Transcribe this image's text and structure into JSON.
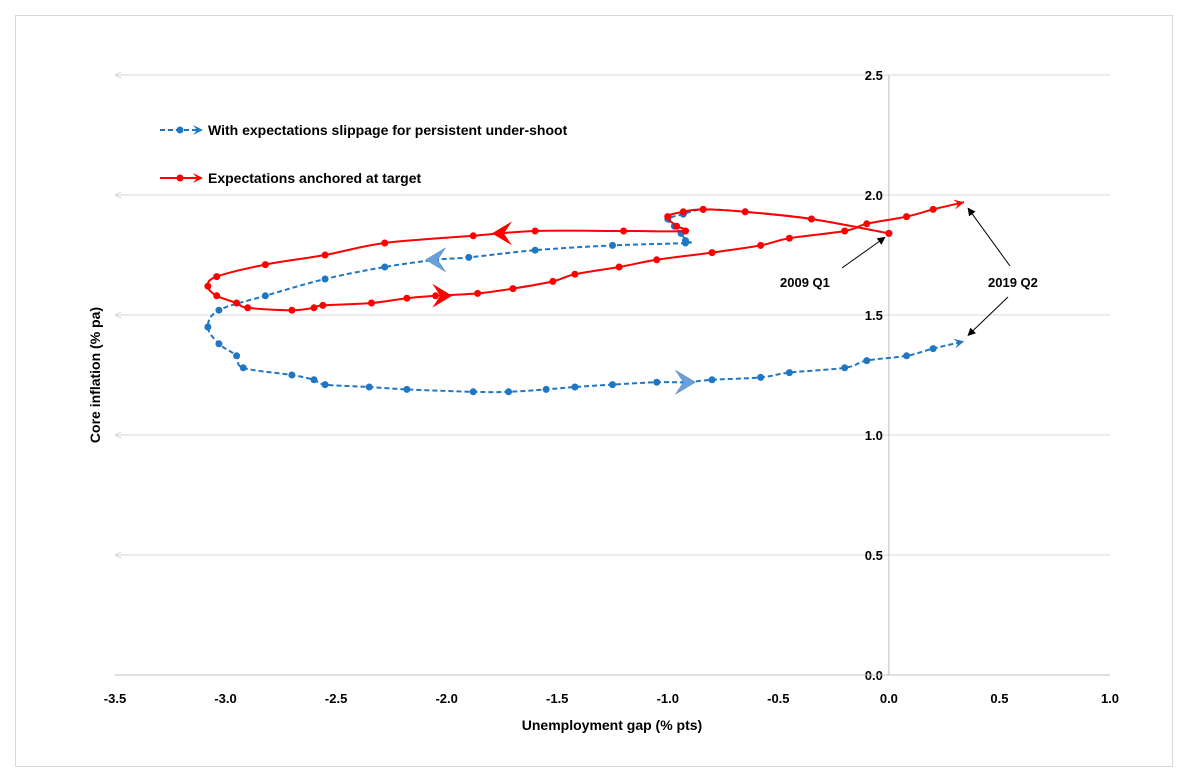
{
  "chart_data": {
    "type": "scatter",
    "title": "",
    "xlabel": "Unemployment gap (% pts)",
    "ylabel": "Core inflation (% pa)",
    "xlim": [
      -3.5,
      1.0
    ],
    "ylim": [
      0.0,
      2.5
    ],
    "xticks": [
      "-3.5",
      "-3.0",
      "-2.5",
      "-2.0",
      "-1.5",
      "-1.0",
      "-0.5",
      "0.0",
      "0.5",
      "1.0"
    ],
    "yticks": [
      "0.0",
      "0.5",
      "1.0",
      "1.5",
      "2.0",
      "2.5"
    ],
    "grid": "horizontal",
    "legend_position": "top-left",
    "colors": {
      "slippage": "#1f77c4",
      "anchored": "#ff0000",
      "blue_arrow": "#6a9fd8",
      "grid": "#d9d9d9",
      "axis": "#bfbfbf"
    },
    "series": [
      {
        "name": "With expectations slippage for persistent under-shoot",
        "style": "dashed",
        "points": [
          [
            0.0,
            1.84
          ],
          [
            -0.35,
            1.9
          ],
          [
            -0.65,
            1.93
          ],
          [
            -0.84,
            1.94
          ],
          [
            -0.93,
            1.92
          ],
          [
            -1.0,
            1.9
          ],
          [
            -0.97,
            1.87
          ],
          [
            -0.94,
            1.84
          ],
          [
            -0.92,
            1.81
          ],
          [
            -0.92,
            1.8
          ],
          [
            -1.25,
            1.79
          ],
          [
            -1.6,
            1.77
          ],
          [
            -1.9,
            1.74
          ],
          [
            -2.05,
            1.73
          ],
          [
            -2.28,
            1.7
          ],
          [
            -2.55,
            1.65
          ],
          [
            -2.82,
            1.58
          ],
          [
            -3.03,
            1.52
          ],
          [
            -3.08,
            1.45
          ],
          [
            -3.03,
            1.38
          ],
          [
            -2.95,
            1.33
          ],
          [
            -2.92,
            1.28
          ],
          [
            -2.7,
            1.25
          ],
          [
            -2.6,
            1.23
          ],
          [
            -2.55,
            1.21
          ],
          [
            -2.35,
            1.2
          ],
          [
            -2.18,
            1.19
          ],
          [
            -1.88,
            1.18
          ],
          [
            -1.72,
            1.18
          ],
          [
            -1.55,
            1.19
          ],
          [
            -1.42,
            1.2
          ],
          [
            -1.25,
            1.21
          ],
          [
            -1.05,
            1.22
          ],
          [
            -0.92,
            1.22
          ],
          [
            -0.8,
            1.23
          ],
          [
            -0.58,
            1.24
          ],
          [
            -0.45,
            1.26
          ],
          [
            -0.2,
            1.28
          ],
          [
            -0.1,
            1.31
          ],
          [
            0.08,
            1.33
          ],
          [
            0.2,
            1.36
          ],
          [
            0.34,
            1.39
          ]
        ],
        "direction_arrows": [
          [
            -2.05,
            1.73,
            "left"
          ],
          [
            -0.92,
            1.22,
            "right"
          ]
        ]
      },
      {
        "name": "Expectations anchored at target",
        "style": "solid",
        "points": [
          [
            0.0,
            1.84
          ],
          [
            -0.35,
            1.9
          ],
          [
            -0.65,
            1.93
          ],
          [
            -0.84,
            1.94
          ],
          [
            -0.93,
            1.93
          ],
          [
            -1.0,
            1.91
          ],
          [
            -0.96,
            1.87
          ],
          [
            -0.92,
            1.85
          ],
          [
            -1.2,
            1.85
          ],
          [
            -1.6,
            1.85
          ],
          [
            -1.88,
            1.83
          ],
          [
            -2.28,
            1.8
          ],
          [
            -2.55,
            1.75
          ],
          [
            -2.82,
            1.71
          ],
          [
            -3.04,
            1.66
          ],
          [
            -3.08,
            1.62
          ],
          [
            -3.04,
            1.58
          ],
          [
            -2.95,
            1.55
          ],
          [
            -2.9,
            1.53
          ],
          [
            -2.7,
            1.52
          ],
          [
            -2.6,
            1.53
          ],
          [
            -2.56,
            1.54
          ],
          [
            -2.34,
            1.55
          ],
          [
            -2.18,
            1.57
          ],
          [
            -2.05,
            1.58
          ],
          [
            -1.86,
            1.59
          ],
          [
            -1.7,
            1.61
          ],
          [
            -1.52,
            1.64
          ],
          [
            -1.42,
            1.67
          ],
          [
            -1.22,
            1.7
          ],
          [
            -1.05,
            1.73
          ],
          [
            -0.8,
            1.76
          ],
          [
            -0.58,
            1.79
          ],
          [
            -0.45,
            1.82
          ],
          [
            -0.2,
            1.85
          ],
          [
            -0.1,
            1.88
          ],
          [
            0.08,
            1.91
          ],
          [
            0.2,
            1.94
          ],
          [
            0.34,
            1.97
          ]
        ],
        "direction_arrows": [
          [
            -1.75,
            1.84,
            "left"
          ],
          [
            -2.02,
            1.58,
            "right"
          ]
        ]
      }
    ],
    "annotations": [
      {
        "text": "2009 Q1",
        "points_to": [
          0.0,
          1.84
        ]
      },
      {
        "text": "2019 Q2",
        "points_to_upper": [
          0.34,
          1.97
        ],
        "points_to_lower": [
          0.34,
          1.39
        ]
      }
    ]
  }
}
